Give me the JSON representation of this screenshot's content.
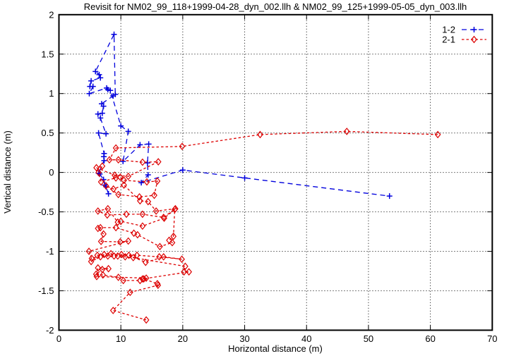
{
  "chart_data": {
    "type": "line",
    "title": "Revisit for NM02_99_118+1999-04-28_dyn_002.llh & NM02_99_125+1999-05-05_dyn_003.llh",
    "xlabel": "Horizontal distance (m)",
    "ylabel": "Vertical distance (m)",
    "xlim": [
      0,
      70
    ],
    "ylim": [
      -2,
      2
    ],
    "xticks": [
      0,
      10,
      20,
      30,
      40,
      50,
      60,
      70
    ],
    "yticks": [
      -2,
      -1.5,
      -1,
      -0.5,
      0,
      0.5,
      1,
      1.5,
      2
    ],
    "grid": true,
    "grid_style": "dotted",
    "legend_position": "top-right",
    "background_color": "#ffffff",
    "border_color": "#000000",
    "series": [
      {
        "name": "1-2",
        "color": "#0000dd",
        "marker": "plus",
        "line_style": "dashed",
        "points": [
          [
            8.0,
            -0.27
          ],
          [
            7.6,
            -0.18
          ],
          [
            7.4,
            -0.16
          ],
          [
            7.2,
            -0.09
          ],
          [
            6.6,
            -0.02
          ],
          [
            6.4,
            -0.01
          ],
          [
            7.3,
            0.15
          ],
          [
            7.25,
            0.2
          ],
          [
            7.3,
            0.24
          ],
          [
            6.4,
            0.5
          ],
          [
            7.6,
            0.49
          ],
          [
            6.7,
            0.69
          ],
          [
            6.3,
            0.74
          ],
          [
            7.0,
            0.75
          ],
          [
            7.2,
            0.84
          ],
          [
            6.9,
            0.87
          ],
          [
            8.75,
            0.97
          ],
          [
            9.1,
            0.99
          ],
          [
            8.9,
            1.75
          ],
          [
            5.9,
            1.28
          ],
          [
            6.5,
            1.24
          ],
          [
            6.7,
            1.2
          ],
          [
            5.2,
            1.16
          ],
          [
            5.0,
            1.09
          ],
          [
            5.5,
            1.09
          ],
          [
            4.9,
            1.0
          ],
          [
            7.7,
            1.07
          ],
          [
            7.9,
            1.05
          ],
          [
            8.3,
            1.04
          ],
          [
            10.0,
            0.59
          ],
          [
            11.2,
            0.52
          ],
          [
            10.35,
            0.14
          ],
          [
            13.1,
            0.35
          ],
          [
            14.5,
            0.36
          ],
          [
            14.3,
            0.12
          ],
          [
            14.4,
            -0.03
          ],
          [
            13.3,
            -0.13
          ],
          [
            20.0,
            0.03
          ],
          [
            30.0,
            -0.07
          ],
          [
            53.4,
            -0.3
          ]
        ]
      },
      {
        "name": "2-1",
        "color": "#dd0000",
        "marker": "diamond",
        "line_style": "dashed",
        "points": [
          [
            61.2,
            0.48
          ],
          [
            46.5,
            0.52
          ],
          [
            32.5,
            0.48
          ],
          [
            19.9,
            0.33
          ],
          [
            9.2,
            0.31
          ],
          [
            8.15,
            0.16
          ],
          [
            9.6,
            0.16
          ],
          [
            13.5,
            0.13
          ],
          [
            16.05,
            0.135
          ],
          [
            11.2,
            -0.05
          ],
          [
            9.0,
            -0.035
          ],
          [
            6.05,
            0.06
          ],
          [
            7.0,
            0.08
          ],
          [
            6.4,
            0.0
          ],
          [
            6.8,
            -0.12
          ],
          [
            9.2,
            -0.07
          ],
          [
            9.9,
            -0.06
          ],
          [
            10.5,
            -0.1
          ],
          [
            14.2,
            -0.12
          ],
          [
            15.9,
            -0.11
          ],
          [
            15.4,
            -0.29
          ],
          [
            13.0,
            -0.31
          ],
          [
            9.6,
            -0.28
          ],
          [
            7.6,
            -0.17
          ],
          [
            8.8,
            -0.21
          ],
          [
            10.5,
            -0.16
          ],
          [
            13.1,
            -0.36
          ],
          [
            14.4,
            -0.37
          ],
          [
            15.7,
            -0.49
          ],
          [
            18.8,
            -0.46
          ],
          [
            16.9,
            -0.57
          ],
          [
            13.5,
            -0.53
          ],
          [
            10.9,
            -0.53
          ],
          [
            7.8,
            -0.54
          ],
          [
            6.3,
            -0.49
          ],
          [
            7.9,
            -0.46
          ],
          [
            9.5,
            -0.63
          ],
          [
            10.0,
            -0.62
          ],
          [
            13.5,
            -0.68
          ],
          [
            17.0,
            -0.58
          ],
          [
            18.7,
            -0.47
          ],
          [
            18.5,
            -0.81
          ],
          [
            17.8,
            -0.86
          ],
          [
            18.3,
            -0.89
          ],
          [
            16.3,
            -0.94
          ],
          [
            12.7,
            -0.79
          ],
          [
            12.1,
            -0.77
          ],
          [
            9.2,
            -0.7
          ],
          [
            6.7,
            -0.7
          ],
          [
            6.3,
            -0.71
          ],
          [
            7.2,
            -0.78
          ],
          [
            6.8,
            -0.875
          ],
          [
            9.9,
            -0.88
          ],
          [
            11.2,
            -0.87
          ],
          [
            4.85,
            -1.0
          ],
          [
            5.3,
            -1.09
          ],
          [
            7.3,
            -1.04
          ],
          [
            10.1,
            -1.04
          ],
          [
            12.6,
            -1.05
          ],
          [
            16.2,
            -1.07
          ],
          [
            19.85,
            -1.1
          ],
          [
            16.9,
            -1.07
          ],
          [
            14.0,
            -1.14
          ],
          [
            11.3,
            -1.05
          ],
          [
            8.9,
            -1.06
          ],
          [
            6.2,
            -1.05
          ],
          [
            5.2,
            -1.13
          ],
          [
            6.7,
            -1.07
          ],
          [
            7.9,
            -1.06
          ],
          [
            8.4,
            -1.03
          ],
          [
            9.5,
            -1.06
          ],
          [
            10.7,
            -1.07
          ],
          [
            12.0,
            -1.08
          ],
          [
            20.4,
            -1.19
          ],
          [
            20.2,
            -1.26
          ],
          [
            21.0,
            -1.26
          ],
          [
            13.5,
            -1.35
          ],
          [
            14.1,
            -1.34
          ],
          [
            6.1,
            -1.32
          ],
          [
            6.3,
            -1.21
          ],
          [
            8.0,
            -1.22
          ],
          [
            7.0,
            -1.23
          ],
          [
            6.0,
            -1.29
          ],
          [
            7.1,
            -1.3
          ],
          [
            9.6,
            -1.33
          ],
          [
            10.4,
            -1.37
          ],
          [
            13.1,
            -1.37
          ],
          [
            13.7,
            -1.35
          ],
          [
            15.9,
            -1.41
          ],
          [
            16.0,
            -1.43
          ],
          [
            11.5,
            -1.52
          ],
          [
            8.75,
            -1.75
          ],
          [
            14.1,
            -1.87
          ]
        ]
      }
    ]
  }
}
